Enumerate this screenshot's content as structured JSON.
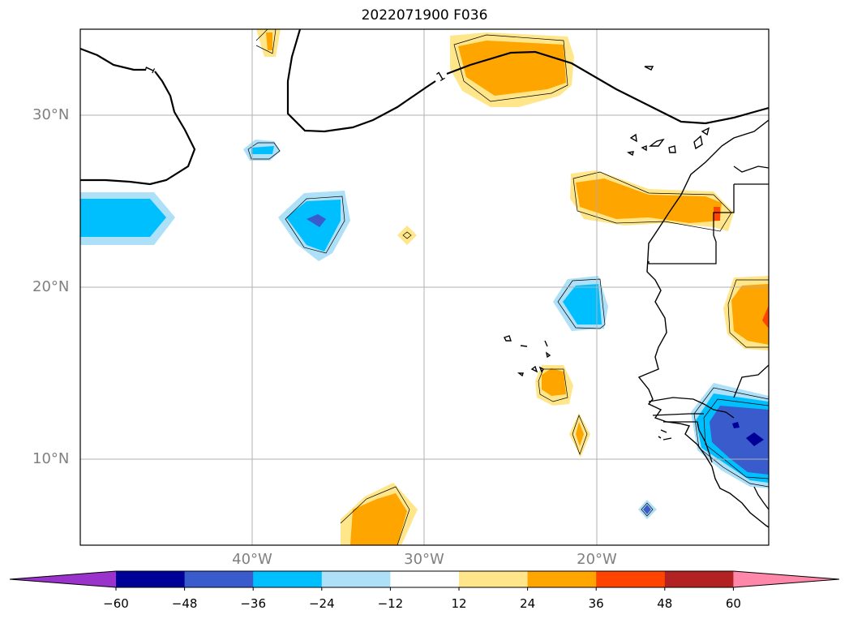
{
  "title": "2022071900 F036",
  "map": {
    "lat_labels": [
      "30°N",
      "20°N",
      "10°N"
    ],
    "lon_labels": [
      "40°W",
      "30°W",
      "20°W"
    ],
    "contour_label": "1",
    "extent": {
      "lon_min": -50,
      "lon_max": -10,
      "lat_min": 5,
      "lat_max": 35
    }
  },
  "colorbar": {
    "ticks": [
      "−60",
      "−48",
      "−36",
      "−24",
      "−12",
      "12",
      "24",
      "36",
      "48",
      "60"
    ],
    "colors": [
      "#9933cc",
      "#000099",
      "#3a5bcc",
      "#00bfff",
      "#aee0f8",
      "#ffffff",
      "#ffe68a",
      "#ffa500",
      "#ff4500",
      "#b22222",
      "#ff88aa"
    ],
    "extend": "both"
  }
}
